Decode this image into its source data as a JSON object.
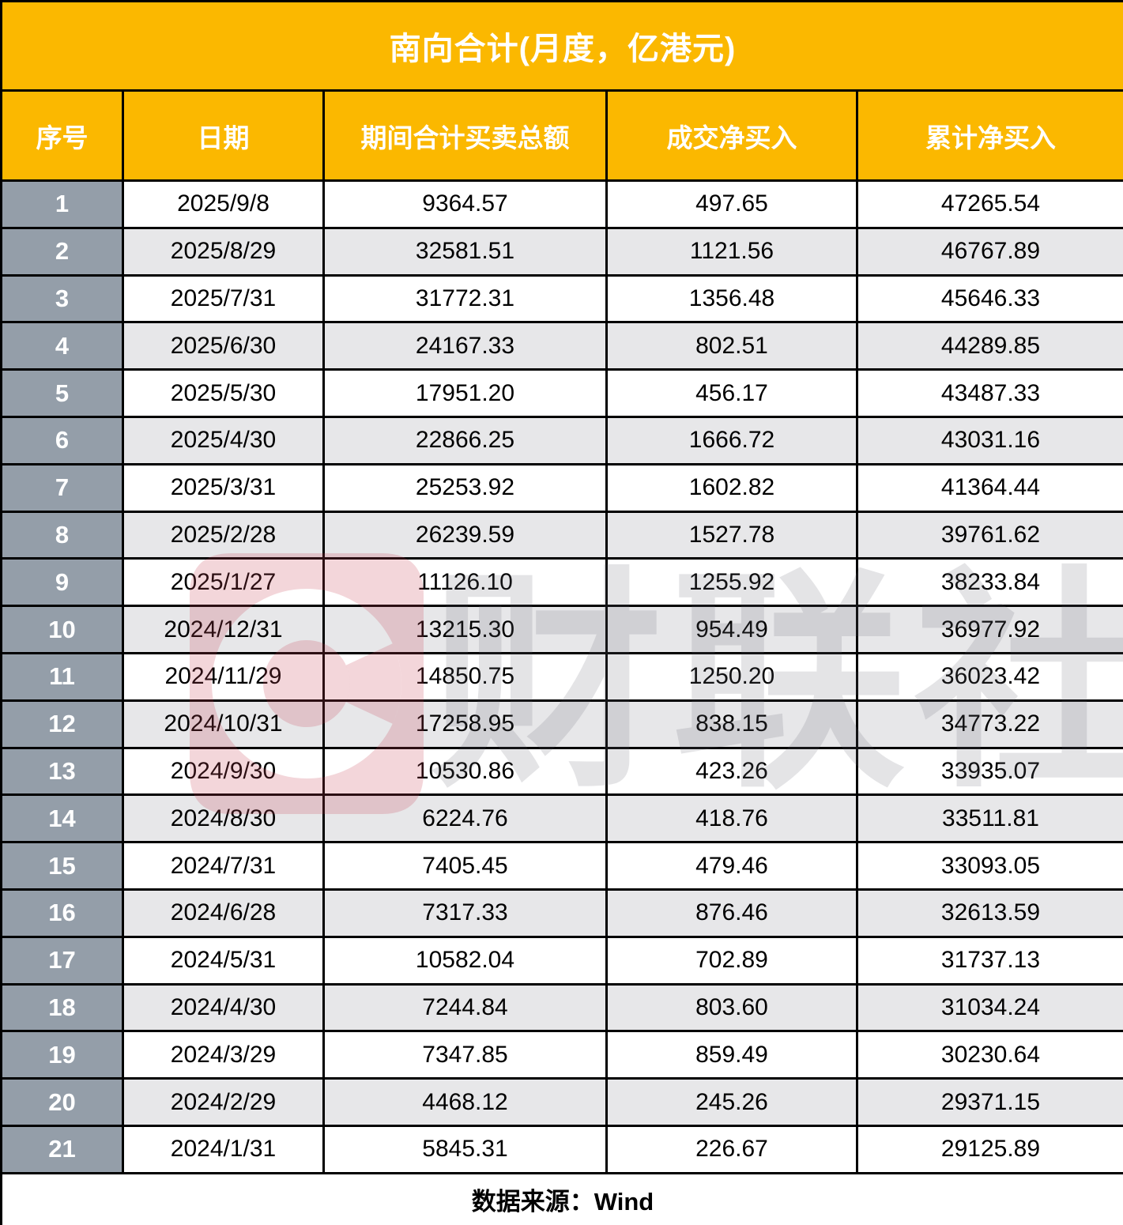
{
  "chart_data": {
    "type": "table",
    "title": "南向合计(月度，亿港元)",
    "columns": [
      "序号",
      "日期",
      "期间合计买卖总额",
      "成交净买入",
      "累计净买入"
    ],
    "rows": [
      [
        "1",
        "2025/9/8",
        "9364.57",
        "497.65",
        "47265.54"
      ],
      [
        "2",
        "2025/8/29",
        "32581.51",
        "1121.56",
        "46767.89"
      ],
      [
        "3",
        "2025/7/31",
        "31772.31",
        "1356.48",
        "45646.33"
      ],
      [
        "4",
        "2025/6/30",
        "24167.33",
        "802.51",
        "44289.85"
      ],
      [
        "5",
        "2025/5/30",
        "17951.20",
        "456.17",
        "43487.33"
      ],
      [
        "6",
        "2025/4/30",
        "22866.25",
        "1666.72",
        "43031.16"
      ],
      [
        "7",
        "2025/3/31",
        "25253.92",
        "1602.82",
        "41364.44"
      ],
      [
        "8",
        "2025/2/28",
        "26239.59",
        "1527.78",
        "39761.62"
      ],
      [
        "9",
        "2025/1/27",
        "11126.10",
        "1255.92",
        "38233.84"
      ],
      [
        "10",
        "2024/12/31",
        "13215.30",
        "954.49",
        "36977.92"
      ],
      [
        "11",
        "2024/11/29",
        "14850.75",
        "1250.20",
        "36023.42"
      ],
      [
        "12",
        "2024/10/31",
        "17258.95",
        "838.15",
        "34773.22"
      ],
      [
        "13",
        "2024/9/30",
        "10530.86",
        "423.26",
        "33935.07"
      ],
      [
        "14",
        "2024/8/30",
        "6224.76",
        "418.76",
        "33511.81"
      ],
      [
        "15",
        "2024/7/31",
        "7405.45",
        "479.46",
        "33093.05"
      ],
      [
        "16",
        "2024/6/28",
        "7317.33",
        "876.46",
        "32613.59"
      ],
      [
        "17",
        "2024/5/31",
        "10582.04",
        "702.89",
        "31737.13"
      ],
      [
        "18",
        "2024/4/30",
        "7244.84",
        "803.60",
        "31034.24"
      ],
      [
        "19",
        "2024/3/29",
        "7347.85",
        "859.49",
        "30230.64"
      ],
      [
        "20",
        "2024/2/29",
        "4468.12",
        "245.26",
        "29371.15"
      ],
      [
        "21",
        "2024/1/31",
        "5845.31",
        "226.67",
        "29125.89"
      ]
    ],
    "source_note": "数据来源：Wind",
    "layout_hints": {
      "grid": "on",
      "striped_rows": true,
      "seq_column_highlight": true
    }
  },
  "watermark": {
    "logo_letter": "C",
    "text": "财联社"
  },
  "colors": {
    "header_bg": "#FBB800",
    "header_text": "#FFFFFF",
    "seq_column_bg": "#949EA9",
    "seq_column_text": "#FFFFFF",
    "row_bg": "#FFFFFF",
    "row_alt_bg": "#E7E7E9",
    "data_text": "#000000",
    "border": "#000000",
    "watermark_pink": "#C84657",
    "watermark_gray": "#6C6C76"
  }
}
